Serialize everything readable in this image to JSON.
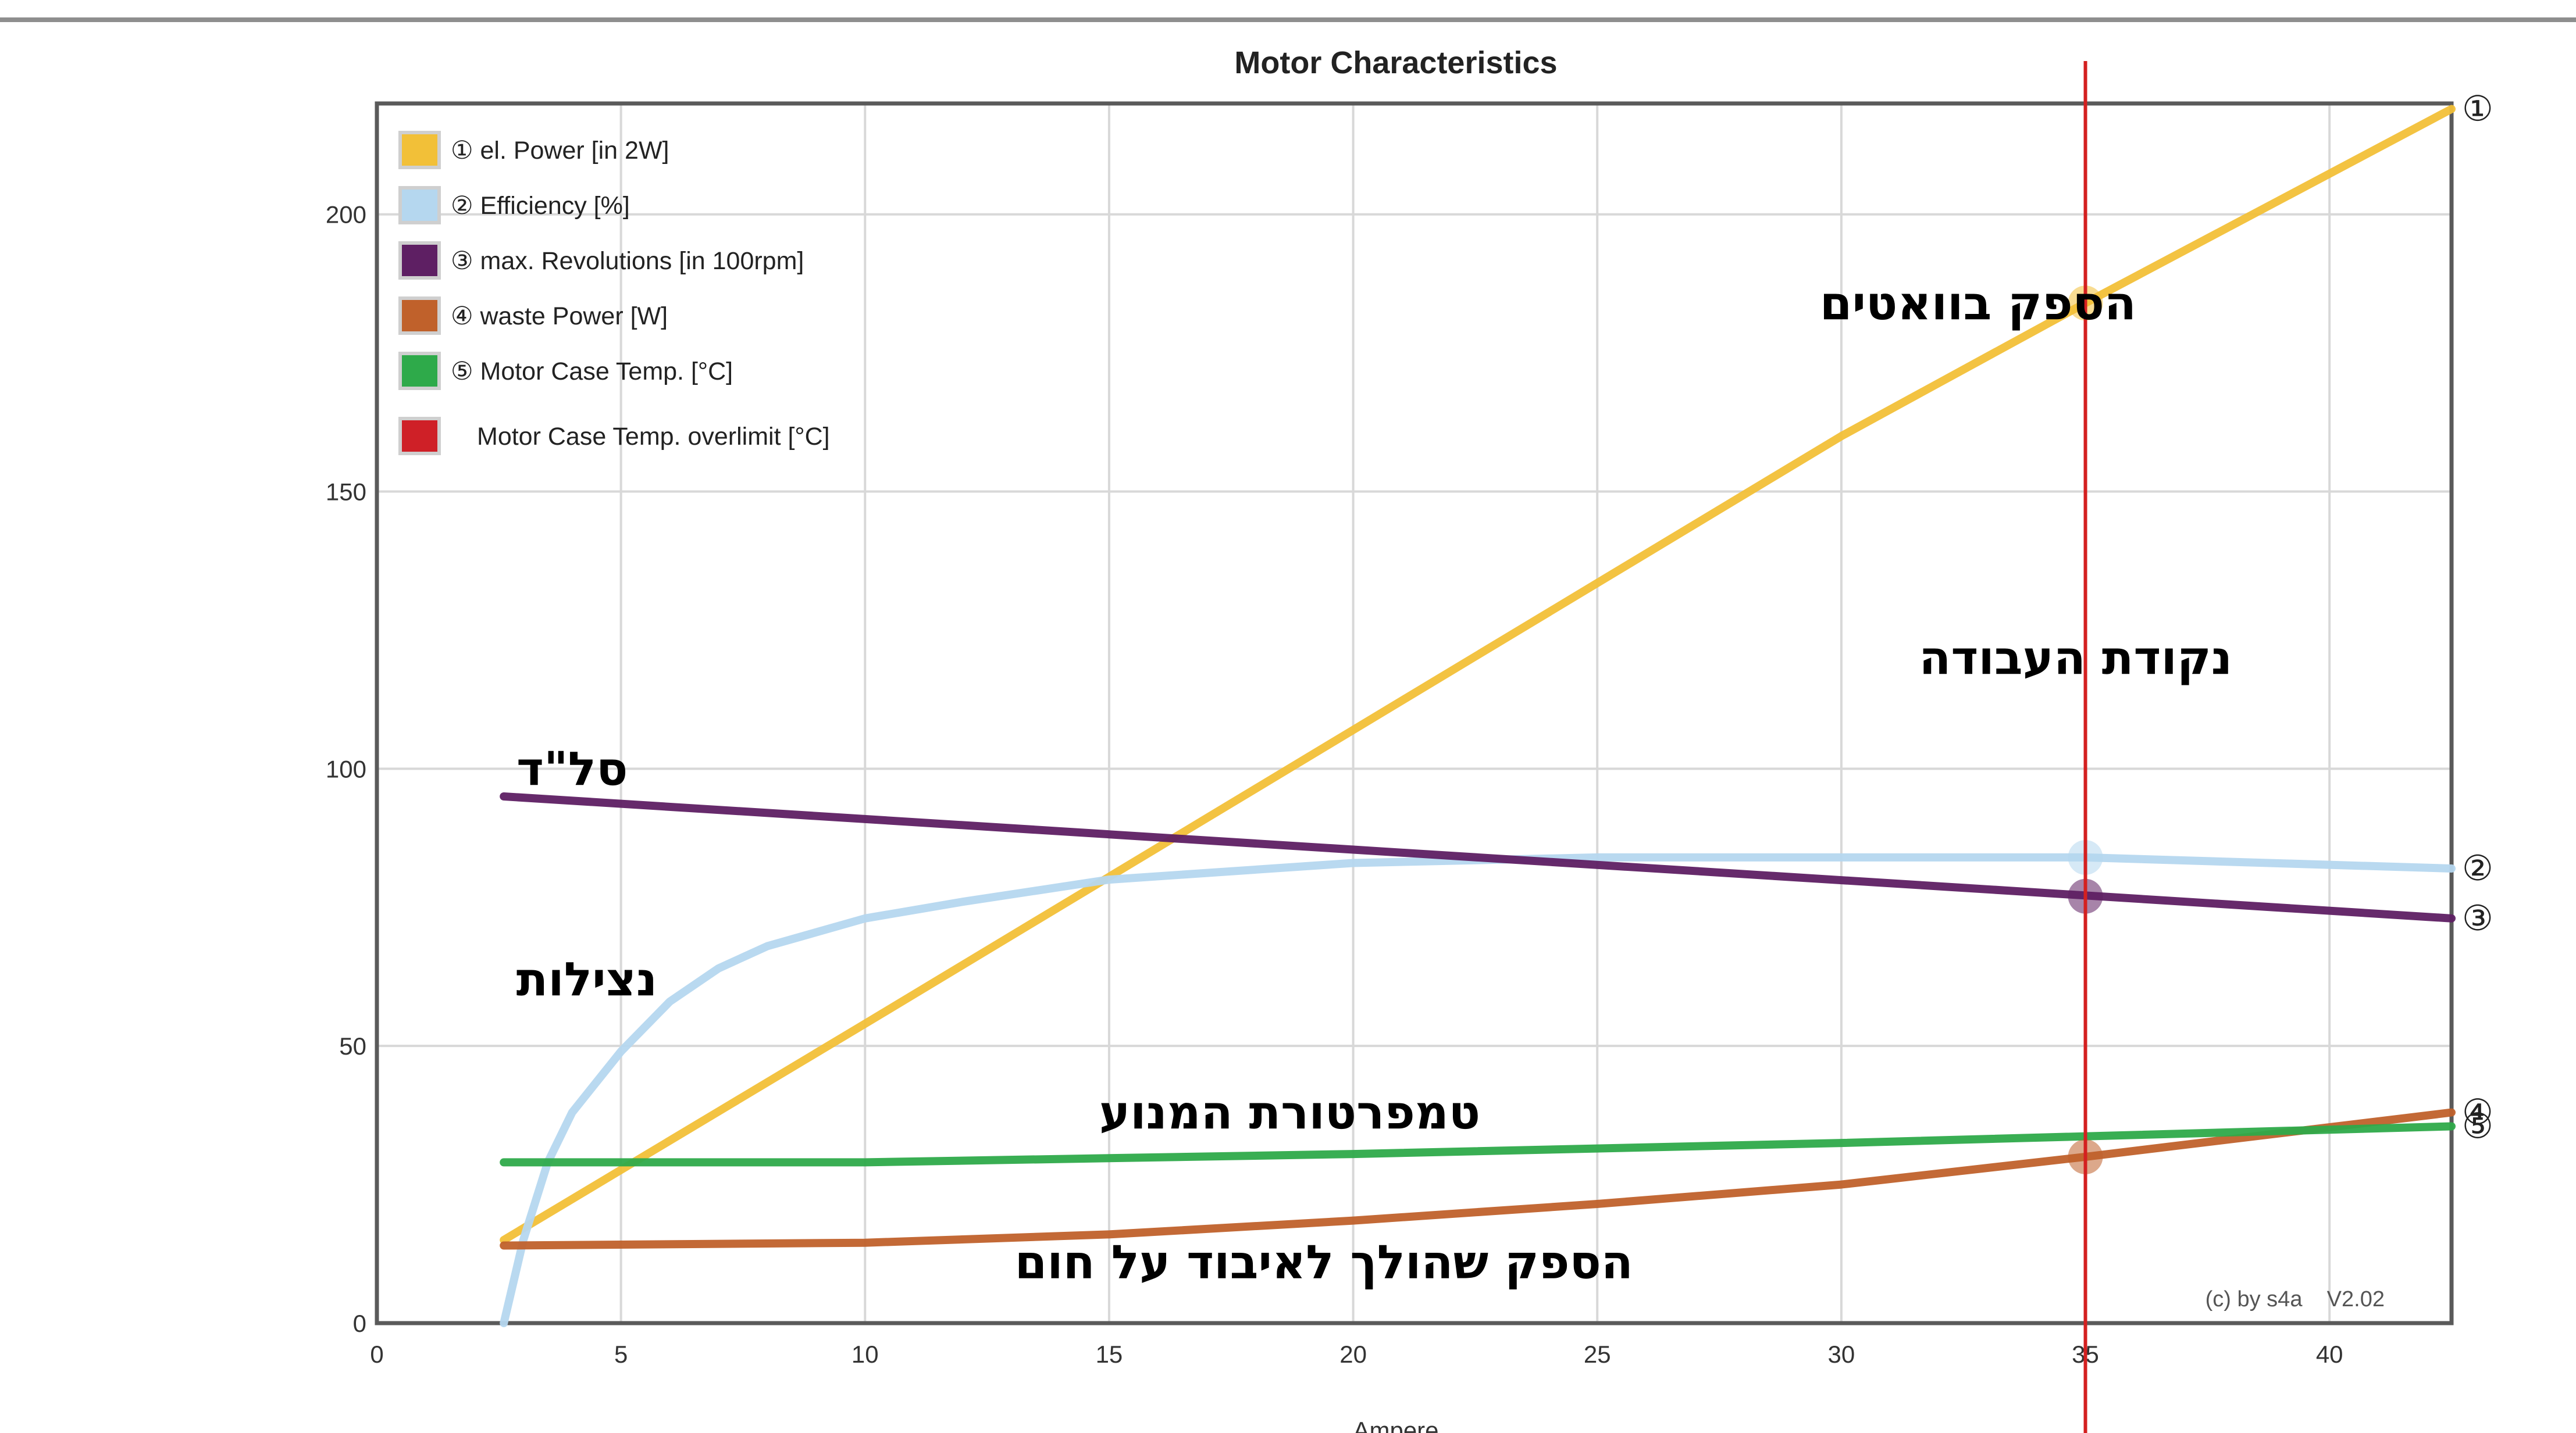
{
  "chart_data": {
    "type": "line",
    "title": "Motor Characteristics",
    "xlabel": "Ampere",
    "ylabel": "",
    "xlim": [
      0,
      42.5
    ],
    "ylim": [
      0,
      220
    ],
    "x_ticks": [
      "0",
      "5",
      "10",
      "15",
      "20",
      "25",
      "30",
      "35",
      "40"
    ],
    "y_ticks": [
      "0",
      "50",
      "100",
      "150",
      "200"
    ],
    "grid": true,
    "legend_position": "top-left",
    "credit": "(c) by s4a    V2.02",
    "series": [
      {
        "name": "① el. Power [in 2W]",
        "color": "#f2c038",
        "end_marker": "①",
        "x": [
          2.6,
          10,
          20,
          30,
          35,
          42.5
        ],
        "y": [
          15,
          54,
          107,
          160,
          184,
          219
        ]
      },
      {
        "name": "② Efficiency [%]",
        "color": "#b5d7ef",
        "end_marker": "②",
        "x": [
          2.6,
          3,
          3.5,
          4,
          5,
          6,
          7,
          8,
          10,
          12,
          15,
          20,
          25,
          30,
          35,
          42.5
        ],
        "y": [
          0,
          15,
          29,
          38,
          49,
          58,
          64,
          68,
          73,
          76,
          80,
          83,
          84,
          84,
          84,
          82
        ]
      },
      {
        "name": "③ max. Revolutions [in 100rpm]",
        "color": "#5e1f63",
        "end_marker": "③",
        "x": [
          2.6,
          42.5
        ],
        "y": [
          95,
          73
        ]
      },
      {
        "name": "④ waste Power [W]",
        "color": "#c0612b",
        "end_marker": "④",
        "x": [
          2.6,
          10,
          15,
          20,
          25,
          30,
          35,
          42.5
        ],
        "y": [
          14,
          14.5,
          16,
          18.5,
          21.5,
          25,
          30,
          38
        ]
      },
      {
        "name": "⑤ Motor Case Temp. [°C]",
        "color": "#2eaa4a",
        "end_marker": "⑤",
        "x": [
          2.6,
          10,
          20,
          30,
          42.5
        ],
        "y": [
          29,
          29,
          30.5,
          32.5,
          35.5
        ]
      },
      {
        "name": "Motor Case Temp. overlimit [°C]",
        "color": "#cf2027",
        "end_marker": "",
        "x": [],
        "y": []
      }
    ],
    "operating_point": {
      "x": 35,
      "color": "#d42020",
      "points": [
        {
          "series": "el. Power",
          "y": 184
        },
        {
          "series": "Efficiency",
          "y": 84
        },
        {
          "series": "max. Revolutions",
          "y": 77
        },
        {
          "series": "waste Power",
          "y": 30
        }
      ]
    },
    "annotations": [
      {
        "text": "הספק בוואטים",
        "x": 32.8,
        "y": 184
      },
      {
        "text": "נקודת העבודה",
        "x": 34.8,
        "y": 120
      },
      {
        "text": "סל\"ד",
        "x": 4,
        "y": 100
      },
      {
        "text": "נצילות",
        "x": 4.3,
        "y": 62
      },
      {
        "text": "טמפרטורת המנוע",
        "x": 18.7,
        "y": 38
      },
      {
        "text": "הספק שהולך לאיבוד על חום",
        "x": 19.4,
        "y": 11
      }
    ]
  }
}
